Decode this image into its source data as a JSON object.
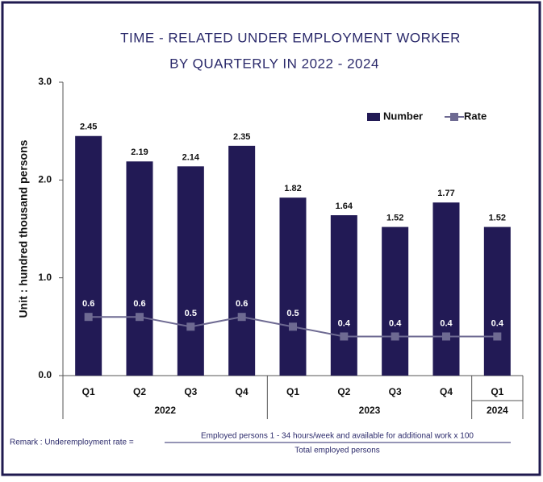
{
  "chart_data": {
    "type": "bar_line",
    "title": [
      "TIME - RELATED UNDER EMPLOYMENT WORKER",
      "BY QUARTERLY IN 2022 - 2024"
    ],
    "y_axis_label": "Unit : hundred thousand persons",
    "groups": [
      {
        "name": "2022",
        "categories": [
          "Q1",
          "Q2",
          "Q3",
          "Q4"
        ]
      },
      {
        "name": "2023",
        "categories": [
          "Q1",
          "Q2",
          "Q3",
          "Q4"
        ]
      },
      {
        "name": "2024",
        "categories": [
          "Q1"
        ]
      }
    ],
    "series": [
      {
        "name": "Number",
        "type": "bar",
        "color": "#221a55",
        "values": [
          2.45,
          2.19,
          2.14,
          2.35,
          1.82,
          1.64,
          1.52,
          1.77,
          1.52
        ]
      },
      {
        "name": "Rate",
        "type": "line",
        "color": "#6e6a92",
        "values": [
          0.6,
          0.6,
          0.5,
          0.6,
          0.5,
          0.4,
          0.4,
          0.4,
          0.4
        ]
      }
    ],
    "ylim": [
      0,
      3
    ],
    "yticks": [
      {
        "value": 0,
        "label": "0.0"
      },
      {
        "value": 1,
        "label": "1.0"
      },
      {
        "value": 2,
        "label": "2.0"
      },
      {
        "value": 3,
        "label": "3.0"
      }
    ],
    "legend": "top-right",
    "remark": {
      "prefix": "Remark : Underemployment rate =",
      "numerator": "Employed persons 1 - 34 hours/week and available for additional work  x 100",
      "denominator": "Total employed persons"
    }
  }
}
